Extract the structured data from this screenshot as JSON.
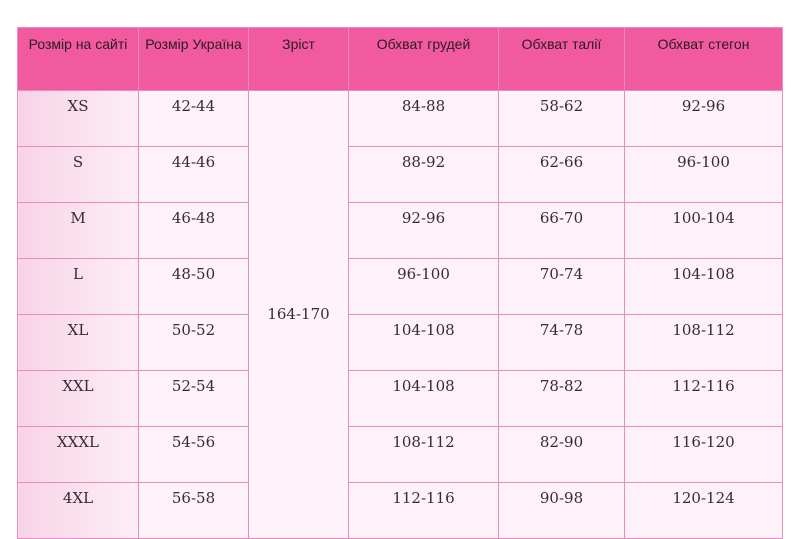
{
  "headers": [
    "Розмір на сайті",
    "Розмір Україна",
    "Зріст",
    "Обхват грудей",
    "Обхват талії",
    "Обхват стегон"
  ],
  "height": "164-170",
  "rows": [
    [
      "XS",
      "42-44",
      "84-88",
      "58-62",
      "92-96"
    ],
    [
      "S",
      "44-46",
      "88-92",
      "62-66",
      "96-100"
    ],
    [
      "M",
      "46-48",
      "92-96",
      "66-70",
      "100-104"
    ],
    [
      "L",
      "48-50",
      "96-100",
      "70-74",
      "104-108"
    ],
    [
      "XL",
      "50-52",
      "104-108",
      "74-78",
      "108-112"
    ],
    [
      "XXL",
      "52-54",
      "104-108",
      "78-82",
      "112-116"
    ],
    [
      "XXXL",
      "54-56",
      "108-112",
      "82-90",
      "116-120"
    ],
    [
      "4XL",
      "56-58",
      "112-116",
      "90-98",
      "120-124"
    ]
  ],
  "colors": {
    "header": "#f25a9f",
    "border": "#e78cbf",
    "cell": "#fdf2f8"
  }
}
